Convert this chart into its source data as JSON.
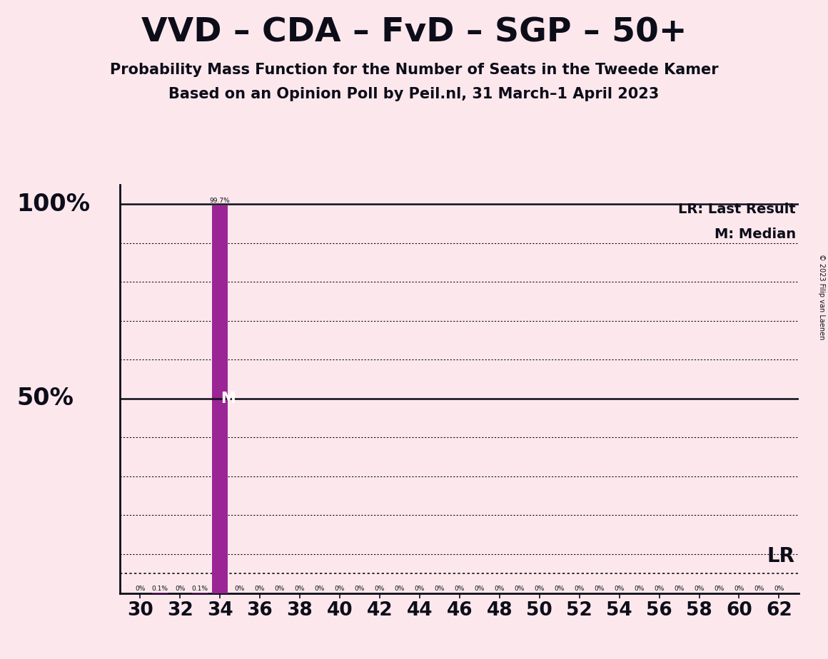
{
  "title": "VVD – CDA – FvD – SGP – 50+",
  "subtitle1": "Probability Mass Function for the Number of Seats in the Tweede Kamer",
  "subtitle2": "Based on an Opinion Poll by Peil.nl, 31 March–1 April 2023",
  "copyright": "© 2023 Filip van Laenen",
  "background_color": "#fce8ec",
  "bar_color": "#9b2594",
  "dark_color": "#0d0d1a",
  "x_min": 29,
  "x_max": 63,
  "x_ticks": [
    30,
    32,
    34,
    36,
    38,
    40,
    42,
    44,
    46,
    48,
    50,
    52,
    54,
    56,
    58,
    60,
    62
  ],
  "y_min": 0,
  "y_max": 1.05,
  "median_seat": 34,
  "lr_value": 0.05,
  "bar_data": {
    "30": 0.0,
    "31": 0.001,
    "32": 0.0,
    "33": 0.001,
    "34": 0.997,
    "35": 0.0,
    "36": 0.0,
    "37": 0.0,
    "38": 0.0,
    "39": 0.0,
    "40": 0.0,
    "41": 0.0,
    "42": 0.0,
    "43": 0.0,
    "44": 0.0,
    "45": 0.0,
    "46": 0.0,
    "47": 0.0,
    "48": 0.0,
    "49": 0.0,
    "50": 0.0,
    "51": 0.0,
    "52": 0.0,
    "53": 0.0,
    "54": 0.0,
    "55": 0.0,
    "56": 0.0,
    "57": 0.0,
    "58": 0.0,
    "59": 0.0,
    "60": 0.0,
    "61": 0.0,
    "62": 0.0
  },
  "bar_labels": {
    "30": "0%",
    "31": "0.1%",
    "32": "0%",
    "33": "0.1%",
    "34": "99.7%",
    "35": "0%",
    "36": "0%",
    "37": "0%",
    "38": "0%",
    "39": "0%",
    "40": "0%",
    "41": "0%",
    "42": "0%",
    "43": "0%",
    "44": "0%",
    "45": "0%",
    "46": "0%",
    "47": "0%",
    "48": "0%",
    "49": "0%",
    "50": "0%",
    "51": "0%",
    "52": "0%",
    "53": "0%",
    "54": "0%",
    "55": "0%",
    "56": "0%",
    "57": "0%",
    "58": "0%",
    "59": "0%",
    "60": "0%",
    "61": "0%",
    "62": "0%"
  },
  "grid_y_positions": [
    0.1,
    0.2,
    0.3,
    0.4,
    0.6,
    0.7,
    0.8,
    0.9
  ]
}
